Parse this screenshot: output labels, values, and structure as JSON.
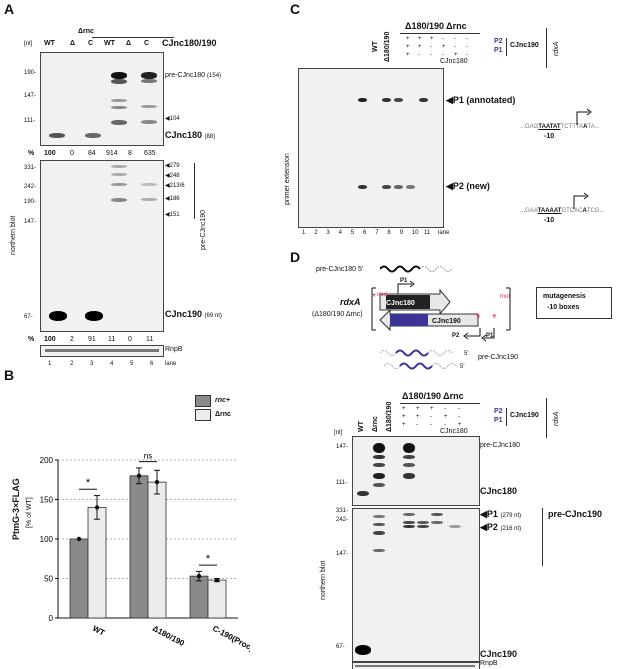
{
  "panelA": {
    "label": "A",
    "nt": "[nt]",
    "top_lanes": [
      "WT",
      "Δ",
      "C",
      "WT",
      "Δ",
      "C"
    ],
    "rnc_group": "Δrnc",
    "probe1": "CJnc180/190",
    "y_axis": "northern blot",
    "markers_top": [
      "190-",
      "147-",
      "111-"
    ],
    "pre_cjnc180": "pre-CJnc180",
    "pre_cjnc180_nt": "(154)",
    "arrow_104": "◀104",
    "cjnc180": "CJnc180",
    "cjnc180_nt": "(88)",
    "pct1_label": "%",
    "pct1": [
      "100",
      "0",
      "84",
      "914",
      "8",
      "635"
    ],
    "markers_mid": [
      "331-",
      "242-",
      "190-",
      "147-"
    ],
    "arrows_mid": [
      "◀279",
      "◀248",
      "◀213/6",
      "◀186",
      "◀151"
    ],
    "pre_cjnc190": "pre-CJnc190",
    "marker_67": "67-",
    "cjnc190": "CJnc190",
    "cjnc190_nt": "(69 nt)",
    "pct2_label": "%",
    "pct2": [
      "100",
      "2",
      "91",
      "11",
      "0",
      "11"
    ],
    "rnpb": "RnpB",
    "lane_numbers": [
      "1",
      "2",
      "3",
      "4",
      "5",
      "6"
    ],
    "lane_word": "lane"
  },
  "panelB": {
    "label": "B",
    "legend": [
      "rnc+",
      "Δrnc"
    ],
    "ylabel1": "PtmG-3×FLAG",
    "ylabel2": "[% of WT]",
    "chart_data": {
      "type": "bar",
      "categories": [
        "WT",
        "Δ180/190",
        "C-190(Proc)"
      ],
      "series": [
        {
          "name": "rnc+",
          "values": [
            100,
            180,
            53
          ],
          "color": "#8a8a8a"
        },
        {
          "name": "Δrnc",
          "values": [
            140,
            172,
            48
          ],
          "color": "#ececec"
        }
      ],
      "errors": [
        [
          0,
          10,
          6
        ],
        [
          15,
          15,
          2
        ]
      ],
      "ylim": [
        0,
        200
      ],
      "yticks": [
        0,
        50,
        100,
        150,
        200
      ],
      "grid": true,
      "legend_position": "top-right",
      "significance": [
        "*",
        "ns",
        "*"
      ]
    }
  },
  "panelC": {
    "label": "C",
    "seq_lanes": [
      "G",
      "A",
      "T",
      "C"
    ],
    "lanes_rot": [
      "WT",
      "Δ180/190"
    ],
    "group": "Δ180/190 Δrnc",
    "p2": "P2",
    "p1": "P1",
    "cjnc190": "CJnc190",
    "cjnc180": "CJnc180",
    "rdxA": "rdxA",
    "signs_p2": [
      "+",
      "+",
      "+",
      "-",
      "-",
      "-"
    ],
    "signs_p1": [
      "+",
      "+",
      "-",
      "+",
      "-",
      "-"
    ],
    "signs_180": [
      "+",
      "-",
      "-",
      "-",
      "+",
      "-"
    ],
    "y_axis": "primer extension",
    "p1_label": "◀P1 (annotated)",
    "p2_label": "◀P2 (new)",
    "seq1_a": "...GAG",
    "seq1_b": "TAATAT",
    "seq1_c": "TCTTTA",
    "seq1_d": "A",
    "seq1_e": "TA...",
    "seq2_a": "...GAA",
    "seq2_b": "TAAAAT",
    "seq2_c": "GTCAC",
    "seq2_d": "A",
    "seq2_e": "TCG...",
    "minus10": "-10",
    "lane_numbers": [
      "1",
      "2",
      "3",
      "4",
      "5",
      "6",
      "7",
      "8",
      "9",
      "10",
      "11"
    ],
    "lane_word": "lane"
  },
  "panelD": {
    "label": "D",
    "pre180_schematic": "pre-CJnc180 5'",
    "p1": "P1",
    "p2": "P2",
    "rdxA": "rdxA",
    "strain": "(Δ180/190 Δrnc)",
    "cjnc180_box": "CJnc180",
    "cjnc190_box": "CJnc190",
    "mut": "mut",
    "mutagenesis": "mutagenesis",
    "boxes": "-10 boxes",
    "five_prime": "5'",
    "pre190_schematic": "pre-CJnc190",
    "lanes_rot": [
      "WT",
      "Δrnc",
      "Δ180/190"
    ],
    "group": "Δ180/190 Δrnc",
    "signs_p2": [
      "+",
      "+",
      "+",
      "-",
      "-"
    ],
    "signs_p1": [
      "+",
      "+",
      "-",
      "+",
      "-"
    ],
    "signs_180": [
      "+",
      "-",
      "-",
      "-",
      "+"
    ],
    "cjnc190_hdr": "CJnc190",
    "cjnc180_hdr": "CJnc180",
    "nt": "[nt]",
    "markers_top": [
      "147-",
      "111-"
    ],
    "pre_cjnc180": "pre-CJnc180",
    "cjnc180": "CJnc180",
    "markers_mid": [
      "331-",
      "242-",
      "147-"
    ],
    "p1_arrow": "◀P1",
    "p1_nt": "(279 nt)",
    "p2_arrow": "◀P2",
    "p2_nt": "(216 nt)",
    "pre_cjnc190": "pre-CJnc190",
    "y_axis": "northern blot",
    "marker_67": "67-",
    "cjnc190": "CJnc190",
    "rnpb": "RnpB",
    "lane_numbers": [
      "1",
      "2",
      "3",
      "4",
      "5",
      "6",
      "7",
      "8"
    ],
    "lane_word": "lane"
  }
}
